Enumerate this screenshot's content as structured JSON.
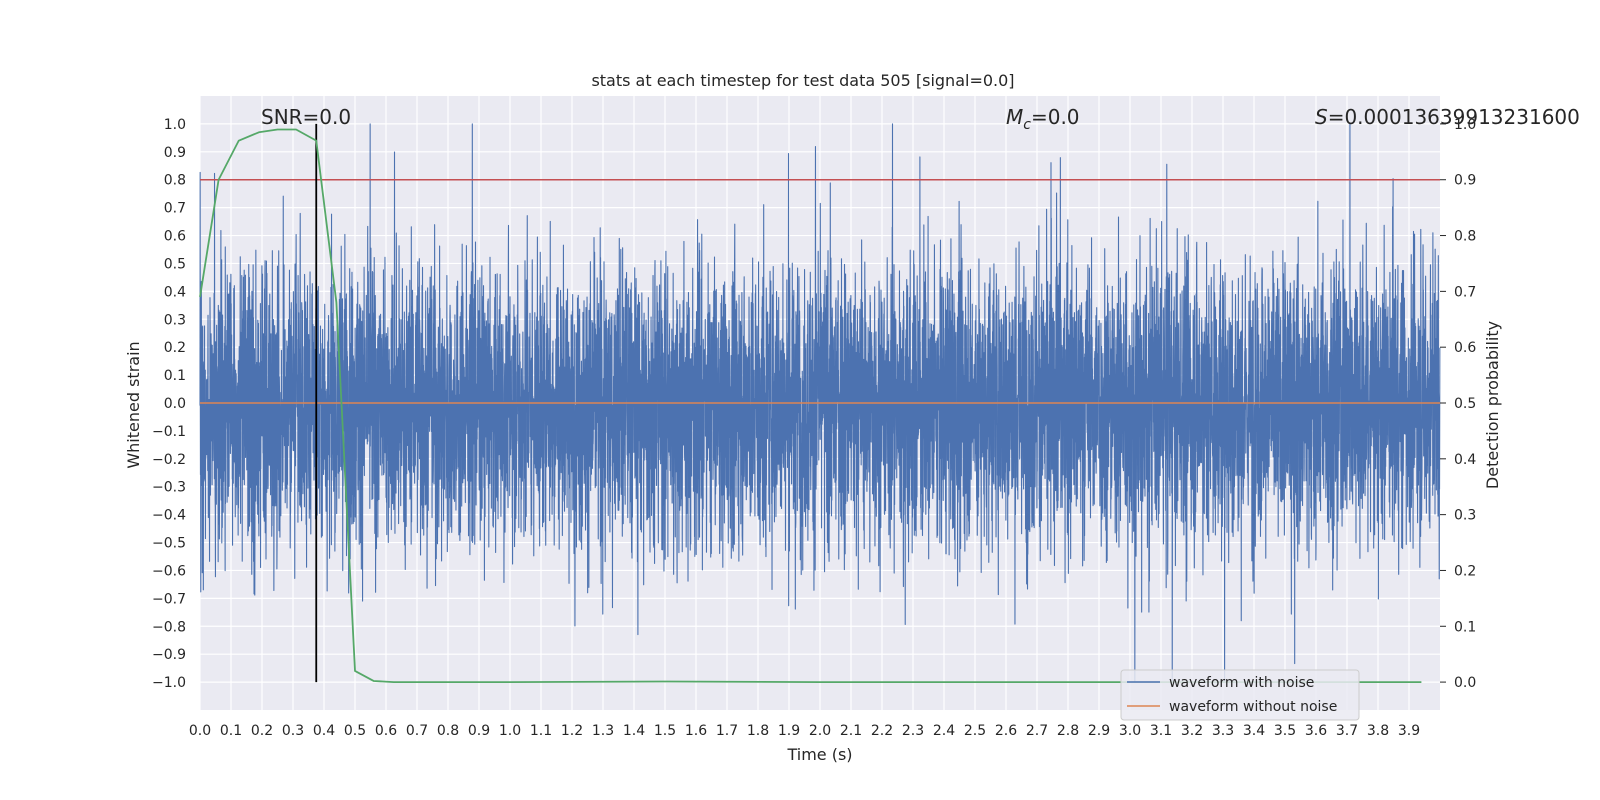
{
  "chart_data": {
    "type": "line",
    "title": "stats at each timestep for test data 505 [signal=0.0]",
    "xlabel": "Time (s)",
    "ylabel": "Whitened strain",
    "ylabel_right": "Detection probability",
    "xlim": [
      0.0,
      4.0
    ],
    "ylim": [
      -1.1,
      1.1
    ],
    "ylim_right": [
      -0.05,
      1.05
    ],
    "x_ticks": [
      "0.0",
      "0.1",
      "0.2",
      "0.3",
      "0.4",
      "0.5",
      "0.6",
      "0.7",
      "0.8",
      "0.9",
      "1.0",
      "1.1",
      "1.2",
      "1.3",
      "1.4",
      "1.5",
      "1.6",
      "1.7",
      "1.8",
      "1.9",
      "2.0",
      "2.1",
      "2.2",
      "2.3",
      "2.4",
      "2.5",
      "2.6",
      "2.7",
      "2.8",
      "2.9",
      "3.0",
      "3.1",
      "3.2",
      "3.3",
      "3.4",
      "3.5",
      "3.6",
      "3.7",
      "3.8",
      "3.9"
    ],
    "y_ticks": [
      "1.0",
      "0.9",
      "0.8",
      "0.7",
      "0.6",
      "0.5",
      "0.4",
      "0.3",
      "0.2",
      "0.1",
      "0.0",
      "−0.1",
      "−0.2",
      "−0.3",
      "−0.4",
      "−0.5",
      "−0.6",
      "−0.7",
      "−0.8",
      "−0.9",
      "−1.0"
    ],
    "y_ticks_right": [
      "1.0",
      "0.9",
      "0.8",
      "0.7",
      "0.6",
      "0.5",
      "0.4",
      "0.3",
      "0.2",
      "0.1",
      "0.0"
    ],
    "grid": true,
    "legend_position": "lower-right",
    "series": [
      {
        "name": "waveform with noise",
        "color": "#4c72b0",
        "axis": "left",
        "kind": "noise",
        "duration_s": 4.0,
        "sample_rate_hz": 2048,
        "approx_amplitude_std": 0.25,
        "approx_extremes": [
          -1.0,
          1.0
        ]
      },
      {
        "name": "waveform without noise",
        "color": "#dd8452",
        "axis": "left",
        "x": [
          0.0,
          4.0
        ],
        "y": [
          0.0,
          0.0
        ]
      },
      {
        "name": "",
        "color": "#55a868",
        "axis": "right",
        "x": [
          0.0,
          0.06,
          0.125,
          0.19,
          0.25,
          0.31,
          0.375,
          0.44,
          0.5,
          0.56,
          0.625,
          0.75,
          1.0,
          1.5,
          2.0,
          2.5,
          3.0,
          3.5,
          3.94
        ],
        "y": [
          0.69,
          0.9,
          0.97,
          0.985,
          0.99,
          0.99,
          0.97,
          0.68,
          0.02,
          0.002,
          0.0,
          0.0,
          0.0,
          0.001,
          0.0,
          0.0,
          0.0,
          0.0,
          0.0
        ]
      }
    ],
    "reference_lines": [
      {
        "orientation": "horizontal",
        "axis": "right",
        "value": 0.9,
        "color": "#c44e52"
      },
      {
        "orientation": "vertical",
        "value": 0.375,
        "y_range": [
          -1.0,
          1.0
        ],
        "color": "#000000"
      }
    ],
    "annotations": {
      "snr": "SNR=0.0",
      "mc_symbol": "M",
      "mc_sub": "c",
      "mc_value": "=0.0",
      "s_symbol": "S",
      "s_value": "=0.00013639913231600"
    }
  }
}
